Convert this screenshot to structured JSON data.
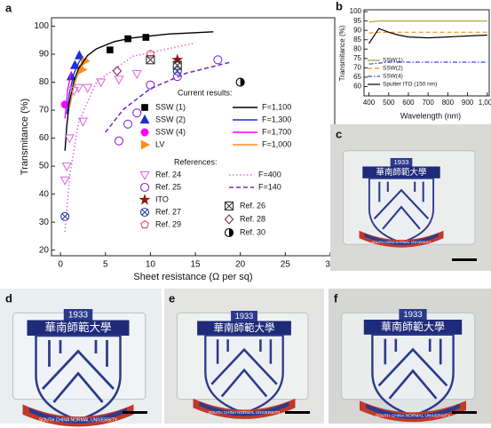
{
  "chart_data": [
    {
      "type": "scatter",
      "label": "a",
      "xlabel": "Sheet resistance (Ω per sq)",
      "ylabel": "Transmitance (%)",
      "xlim": [
        -1,
        30.5
      ],
      "ylim": [
        18,
        103
      ],
      "xticks": [
        0,
        5,
        10,
        15,
        20,
        25,
        30
      ],
      "yticks": [
        20,
        30,
        40,
        50,
        60,
        70,
        80,
        90,
        100
      ],
      "legend_titles": [
        "Current results:",
        "References:"
      ],
      "series": [
        {
          "name": "SSW (1)",
          "color": "#000000",
          "marker": "square",
          "x": [
            5.5,
            7.5,
            9.5
          ],
          "values": [
            91.5,
            95.5,
            96
          ]
        },
        {
          "name": "SSW (2)",
          "color": "#1f2fd6",
          "marker": "triangle",
          "x": [
            1.2,
            1.6,
            2.1
          ],
          "values": [
            82,
            86,
            89.5
          ]
        },
        {
          "name": "SSW (4)",
          "color": "#ff00ff",
          "marker": "circle",
          "x": [
            0.5
          ],
          "values": [
            72
          ]
        },
        {
          "name": "LV",
          "color": "#ff8c1a",
          "marker": "triangle-right",
          "x": [
            2.4,
            2.7
          ],
          "values": [
            84.5,
            87.5
          ]
        },
        {
          "name": "F=1,100",
          "color": "#000000",
          "dash": "solid",
          "x": [
            0.5,
            0.7,
            1,
            1.5,
            2,
            3,
            4,
            6,
            8,
            12,
            17
          ],
          "values": [
            55.5,
            64.5,
            72.9,
            80.5,
            84.8,
            89.5,
            91.9,
            94.5,
            95.8,
            97.2,
            98.0
          ]
        },
        {
          "name": "F=1,300",
          "color": "#1f2fd6",
          "dash": "solid",
          "x": [
            0.7,
            1,
            1.5,
            2,
            2.5
          ],
          "values": [
            68.6,
            76.3,
            83.1,
            86.9,
            89.3
          ]
        },
        {
          "name": "F=1,700",
          "color": "#ff00ff",
          "dash": "solid",
          "x": [
            0.5,
            0.8,
            1.2
          ],
          "values": [
            67.0,
            77.1,
            83.8
          ]
        },
        {
          "name": "F=1,000",
          "color": "#ff8c1a",
          "dash": "solid",
          "x": [
            1,
            1.5,
            2,
            3
          ],
          "values": [
            70.8,
            78.9,
            83.5,
            88.5
          ]
        },
        {
          "name": "Ref. 24",
          "color": "#e070e0",
          "marker": "triangle-down-open",
          "x": [
            0.5,
            0.7,
            1,
            2.5,
            1.5,
            2,
            3,
            4.5,
            6.5,
            8.5
          ],
          "values": [
            45,
            50,
            60,
            66,
            77,
            78,
            78,
            80,
            81,
            83
          ]
        },
        {
          "name": "Ref. 25",
          "color": "#8a2be2",
          "marker": "circle-open",
          "x": [
            6.5,
            7.5,
            8.5,
            10,
            13,
            17.5
          ],
          "values": [
            59,
            65,
            69,
            79,
            82,
            88
          ]
        },
        {
          "name": "ITO",
          "color": "#8b1a1a",
          "marker": "star",
          "x": [
            13
          ],
          "values": [
            88
          ]
        },
        {
          "name": "Ref. 27",
          "color": "#2a3bb0",
          "marker": "circle-x",
          "x": [
            0.5,
            13
          ],
          "values": [
            32,
            84
          ]
        },
        {
          "name": "Ref. 29",
          "color": "#e05050",
          "marker": "pentagon-open",
          "x": [
            10
          ],
          "values": [
            90
          ]
        },
        {
          "name": "F=400",
          "color": "#e070e0",
          "dash": "dotted",
          "x": [
            0.5,
            1,
            2,
            4,
            8,
            15
          ],
          "values": [
            26.5,
            46.2,
            65.5,
            80.0,
            89.2,
            94.0
          ]
        },
        {
          "name": "F=140",
          "color": "#7b2fbf",
          "dash": "dashed",
          "x": [
            5,
            7,
            10,
            14,
            19
          ],
          "values": [
            62.1,
            70.3,
            77.7,
            83.2,
            87.2
          ]
        },
        {
          "name": "Ref. 26",
          "color": "#333333",
          "marker": "boxed-x",
          "x": [
            10,
            13
          ],
          "values": [
            88,
            86
          ]
        },
        {
          "name": "Ref. 28",
          "color": "#7a2a4a",
          "marker": "diamond-open",
          "x": [
            6.3
          ],
          "values": [
            84
          ]
        },
        {
          "name": "Ref. 30",
          "color": "#000000",
          "marker": "half-circle",
          "x": [
            20
          ],
          "values": [
            80
          ]
        }
      ]
    },
    {
      "type": "line",
      "label": "b",
      "xlabel": "Wavelength (nm)",
      "ylabel": "Transmitance (%)",
      "xlim": [
        375,
        1010
      ],
      "ylim": [
        55,
        101
      ],
      "xticks": [
        400,
        500,
        600,
        700,
        800,
        900,
        {
          "value": 1000,
          "label": "1,000"
        }
      ],
      "yticks": [
        60,
        65,
        70,
        75,
        80,
        85,
        90,
        95,
        100
      ],
      "x": [
        400,
        450,
        500,
        550,
        600,
        700,
        800,
        900,
        1000
      ],
      "series": [
        {
          "name": "SSW(1)",
          "color": "#a0a030",
          "dash": "solid",
          "values": [
            94.5,
            95,
            95,
            95,
            95,
            95,
            95,
            95,
            95
          ]
        },
        {
          "name": "SSW(2)",
          "color": "#ff8c1a",
          "dash": "dashed",
          "values": [
            88.5,
            89,
            89,
            89,
            89,
            89,
            89,
            89,
            89
          ]
        },
        {
          "name": "SSW(4)",
          "color": "#3050d0",
          "dash": "dash-dot",
          "values": [
            72,
            72.5,
            73,
            73,
            73,
            73,
            73,
            73,
            73
          ]
        },
        {
          "name": "Sputter ITO (150 nm)",
          "color": "#000000",
          "dash": "solid",
          "values": [
            83,
            91,
            89,
            87.5,
            86.5,
            86,
            86.5,
            87,
            87.5
          ]
        }
      ]
    }
  ],
  "photos": [
    {
      "label": "c",
      "year": "1933",
      "name_cn": "華南師範大學",
      "name_en": "SOUTH CHINA NORMAL UNIVERSITY"
    },
    {
      "label": "d",
      "year": "1933",
      "name_cn": "華南師範大學",
      "name_en": "SOUTH CHINA NORMAL UNIVERSITY"
    },
    {
      "label": "e",
      "year": "1933",
      "name_cn": "華南師範大學",
      "name_en": "SOUTH CHINA NORMAL UNIVERSITY"
    },
    {
      "label": "f",
      "year": "1933",
      "name_cn": "華南師範大學",
      "name_en": "SOUTH CHINA NORMAL UNIVERSITY"
    }
  ]
}
